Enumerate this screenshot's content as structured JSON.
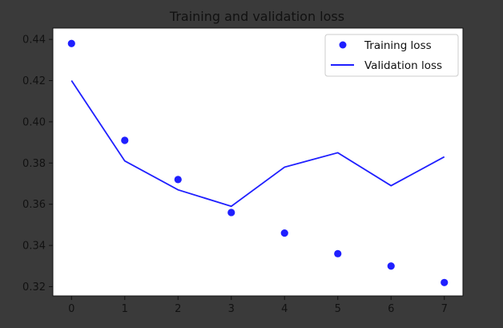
{
  "colors": {
    "figure_bg": "#3a3a3a",
    "plot_bg": "#ffffff",
    "series": "#1f1fff",
    "text": "#111111"
  },
  "chart_data": {
    "type": "line",
    "title": "Training and validation loss",
    "xlabel": "",
    "ylabel": "",
    "x": [
      0,
      1,
      2,
      3,
      4,
      5,
      6,
      7
    ],
    "xlim": [
      -0.35,
      7.35
    ],
    "ylim": [
      0.3155,
      0.4455
    ],
    "xticks": [
      0,
      1,
      2,
      3,
      4,
      5,
      6,
      7
    ],
    "yticks": [
      0.32,
      0.34,
      0.36,
      0.38,
      0.4,
      0.42,
      0.44
    ],
    "ytick_labels": [
      "0.32",
      "0.34",
      "0.36",
      "0.38",
      "0.40",
      "0.42",
      "0.44"
    ],
    "grid": false,
    "legend": "top-right",
    "series": [
      {
        "name": "Training loss",
        "style": "markers",
        "values": [
          0.438,
          0.391,
          0.372,
          0.356,
          0.346,
          0.336,
          0.33,
          0.322
        ]
      },
      {
        "name": "Validation loss",
        "style": "line",
        "values": [
          0.42,
          0.381,
          0.367,
          0.359,
          0.378,
          0.385,
          0.369,
          0.383
        ]
      }
    ]
  }
}
